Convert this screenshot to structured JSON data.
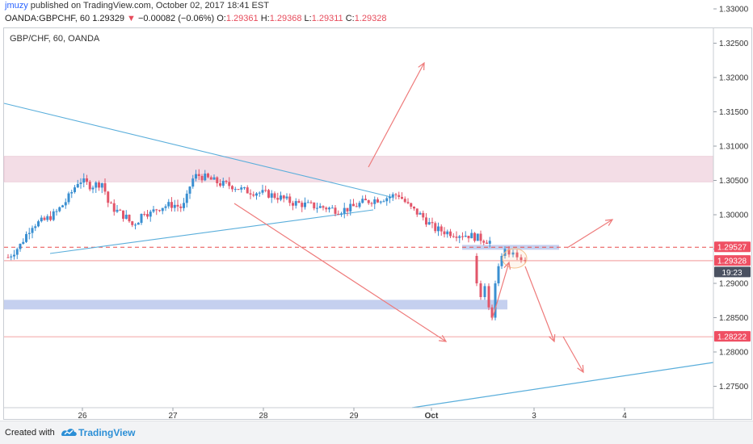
{
  "header": {
    "user": "jmuzy",
    "published": " published on TradingView.com, October 02, 2017 18:41 EST",
    "symbol_line": "OANDA:GBPCHF, 60",
    "last_price": "1.29329",
    "change_arrow": "▼",
    "change": "−0.00082 (−0.06%)",
    "o_label": "O:",
    "o_value": "1.29361",
    "h_label": "H:",
    "h_value": "1.29368",
    "l_label": "L:",
    "l_value": "1.29311",
    "c_label": "C:",
    "c_value": "1.29328"
  },
  "legend": "GBP/CHF, 60, OANDA",
  "footer": {
    "created_with": "Created with",
    "brand": "TradingView"
  },
  "colors": {
    "up": "#3a8fd1",
    "down": "#e2566a",
    "trendline": "#5aaedb",
    "arrow": "#ee7a7a",
    "resistance_zone": "#f3dde6",
    "support_zone": "#c5d0ef",
    "hline": "#ef8585",
    "dashed_line": "#e84c4c",
    "tag_red": "#ef4f63",
    "tag_dark": "#4a5161",
    "circle": "#f5c08a"
  },
  "chart_data": {
    "type": "candlestick",
    "title": "GBP/CHF, 60, OANDA",
    "y_axis": {
      "range": [
        1.272,
        1.3305
      ],
      "ticks": [
        "1.27500",
        "1.28000",
        "1.28500",
        "1.29000",
        "1.29500",
        "1.30000",
        "1.30500",
        "1.31000",
        "1.31500",
        "1.32000",
        "1.32500",
        "1.33000"
      ]
    },
    "x_axis": {
      "ticks": [
        "26",
        "27",
        "28",
        "29",
        "Oct",
        "3",
        "4"
      ]
    },
    "price_tags": [
      {
        "label": "1.29527",
        "value": 1.29527,
        "style": "red"
      },
      {
        "label": "1.29328",
        "value": 1.29328,
        "style": "red"
      },
      {
        "label": "19:23",
        "value": 1.2916,
        "style": "dark"
      },
      {
        "label": "1.28222",
        "value": 1.28222,
        "style": "red"
      }
    ],
    "price_path": [
      [
        0,
        1.2938
      ],
      [
        1,
        1.2955
      ],
      [
        2,
        1.2985
      ],
      [
        3,
        1.2991
      ],
      [
        4,
        1.3002
      ],
      [
        5,
        1.3022
      ],
      [
        6,
        1.3051
      ],
      [
        7,
        1.3042
      ],
      [
        8,
        1.3047
      ],
      [
        8.5,
        1.3015
      ],
      [
        9,
        1.3008
      ],
      [
        9.5,
        1.3002
      ],
      [
        10,
        1.2996
      ],
      [
        10.5,
        1.2985
      ],
      [
        11,
        1.2992
      ],
      [
        11.5,
        1.3006
      ],
      [
        12,
        1.3001
      ],
      [
        12.5,
        1.3008
      ],
      [
        13,
        1.3012
      ],
      [
        14,
        1.3015
      ],
      [
        14.7,
        1.301
      ],
      [
        15,
        1.3017
      ],
      [
        15.5,
        1.305
      ],
      [
        16,
        1.3058
      ],
      [
        17,
        1.3052
      ]
    ],
    "resistance_zone": [
      1.3048,
      1.3085
    ],
    "support_zone": [
      1.2862,
      1.2876
    ],
    "horizontal_lines": [
      1.2933,
      1.28222
    ],
    "dashed_line": 1.29527
  }
}
